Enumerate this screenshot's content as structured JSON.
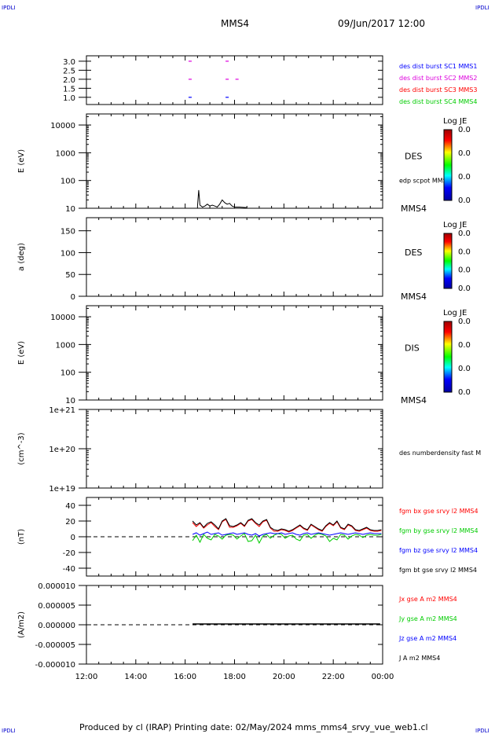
{
  "header": {
    "corner_label": "IPDLI",
    "spacecraft": "MMS4",
    "datetime": "09/Jun/2017 12:00"
  },
  "footer": {
    "text": "Produced by cl (IRAP)   Printing date: 02/May/2024   mms_mms4_srvy_vue_web1.cl"
  },
  "colors": {
    "mms1": "#0000ff",
    "mms2": "#dd00dd",
    "mms3": "#ff0000",
    "mms4": "#00cc00",
    "bt": "#000000"
  },
  "colorbar": {
    "title": "Log JE",
    "ticks": [
      "0.0",
      "0.0",
      "0.0",
      "0.0"
    ]
  },
  "chart_data": [
    {
      "id": "burst",
      "type": "scatter",
      "ylabel": "",
      "ylim": [
        0.6,
        3.3
      ],
      "yticks": [
        "3.0",
        "2.5",
        "2.0",
        "1.5",
        "1.0"
      ],
      "legend": [
        "des dist burst SC1 MMS1",
        "des dist burst SC2 MMS2",
        "des dist burst SC3 MMS3",
        "des dist burst SC4 MMS4"
      ],
      "segments": [
        {
          "t": 16.2,
          "y": 3.0,
          "c": "mms2"
        },
        {
          "t": 17.7,
          "y": 3.0,
          "c": "mms2"
        },
        {
          "t": 16.2,
          "y": 2.0,
          "c": "mms2"
        },
        {
          "t": 17.7,
          "y": 2.0,
          "c": "mms2"
        },
        {
          "t": 18.1,
          "y": 2.0,
          "c": "mms2"
        },
        {
          "t": 16.2,
          "y": 1.0,
          "c": "mms1"
        },
        {
          "t": 17.7,
          "y": 1.0,
          "c": "mms1"
        }
      ]
    },
    {
      "id": "des-energy",
      "type": "heatmap",
      "ylabel": "E (eV)",
      "scale": "log",
      "ylim": [
        10,
        25000
      ],
      "yticks": [
        "10000",
        "1000",
        "100",
        "10"
      ],
      "label": "DES",
      "sublabel": "edp scpot MMS4",
      "bottom_label": "MMS4",
      "scpot": [
        [
          16.5,
          12
        ],
        [
          16.55,
          45
        ],
        [
          16.6,
          13
        ],
        [
          16.7,
          11
        ],
        [
          16.8,
          12
        ],
        [
          16.9,
          14
        ],
        [
          17.0,
          12
        ],
        [
          17.1,
          13
        ],
        [
          17.2,
          12
        ],
        [
          17.3,
          11
        ],
        [
          17.4,
          14
        ],
        [
          17.5,
          20
        ],
        [
          17.6,
          16
        ],
        [
          17.7,
          14
        ],
        [
          17.8,
          15
        ],
        [
          17.9,
          12
        ],
        [
          18.0,
          11
        ],
        [
          18.2,
          11
        ],
        [
          18.5,
          10.5
        ]
      ]
    },
    {
      "id": "des-pitch",
      "type": "heatmap",
      "ylabel": "a (deg)",
      "ylim": [
        0,
        180
      ],
      "yticks": [
        "150",
        "100",
        "50",
        "0"
      ],
      "label": "DES",
      "bottom_label": "MMS4"
    },
    {
      "id": "dis-energy",
      "type": "heatmap",
      "ylabel": "E (eV)",
      "scale": "log",
      "ylim": [
        10,
        25000
      ],
      "yticks": [
        "10000",
        "1000",
        "100",
        "10"
      ],
      "label": "DIS",
      "bottom_label": "MMS4"
    },
    {
      "id": "density",
      "type": "line",
      "ylabel": "(cm^-3)",
      "scale": "log",
      "ylim": [
        1e+19,
        1e+21
      ],
      "yticks": [
        "1e+21",
        "1e+20",
        "1e+19"
      ],
      "legend": [
        "des numberdensity fast M"
      ]
    },
    {
      "id": "fgm",
      "type": "line",
      "ylabel": "(nT)",
      "ylim": [
        -50,
        50
      ],
      "yticks": [
        "40",
        "20",
        "0",
        "-20",
        "-40"
      ],
      "legend": [
        "fgm bx gse srvy l2 MMS4",
        "fgm by gse srvy l2 MMS4",
        "fgm bz gse srvy l2 MMS4",
        "fgm bt gse srvy l2 MMS4"
      ],
      "x": [
        16.3,
        16.45,
        16.6,
        16.75,
        16.9,
        17.05,
        17.2,
        17.35,
        17.5,
        17.65,
        17.8,
        17.95,
        18.1,
        18.25,
        18.4,
        18.55,
        18.7,
        18.85,
        19.0,
        19.15,
        19.3,
        19.45,
        19.6,
        19.75,
        19.9,
        20.05,
        20.2,
        20.35,
        20.5,
        20.65,
        20.8,
        20.95,
        21.1,
        21.25,
        21.4,
        21.55,
        21.7,
        21.85,
        22.0,
        22.15,
        22.3,
        22.45,
        22.6,
        22.75,
        22.9,
        23.05,
        23.2,
        23.35,
        23.5,
        23.65,
        23.8,
        23.95
      ],
      "bt": [
        20,
        15,
        18,
        12,
        17,
        19,
        15,
        10,
        20,
        23,
        14,
        13,
        15,
        18,
        14,
        21,
        23,
        18,
        15,
        20,
        22,
        12,
        9,
        8,
        10,
        9,
        7,
        9,
        12,
        15,
        11,
        9,
        16,
        13,
        10,
        8,
        14,
        18,
        15,
        20,
        12,
        10,
        16,
        14,
        9,
        8,
        10,
        12,
        9,
        8,
        8,
        9
      ],
      "bx": [
        18,
        13,
        17,
        11,
        15,
        18,
        13,
        9,
        19,
        22,
        12,
        12,
        14,
        17,
        13,
        20,
        22,
        17,
        13,
        19,
        21,
        11,
        7,
        7,
        9,
        8,
        6,
        8,
        11,
        14,
        10,
        8,
        15,
        12,
        9,
        7,
        13,
        17,
        14,
        19,
        11,
        9,
        15,
        13,
        8,
        7,
        9,
        11,
        8,
        7,
        7,
        8
      ],
      "by": [
        -5,
        2,
        -7,
        3,
        -2,
        -4,
        3,
        1,
        -3,
        2,
        3,
        2,
        -3,
        1,
        4,
        -6,
        -5,
        2,
        -8,
        1,
        3,
        -2,
        2,
        4,
        3,
        -2,
        1,
        2,
        -3,
        -5,
        2,
        3,
        -2,
        2,
        4,
        3,
        1,
        -6,
        -2,
        -4,
        3,
        2,
        -3,
        1,
        3,
        2,
        -1,
        2,
        3,
        2,
        2,
        3
      ],
      "bz": [
        3,
        5,
        2,
        4,
        6,
        3,
        4,
        5,
        2,
        3,
        4,
        5,
        3,
        4,
        5,
        3,
        2,
        4,
        1,
        3,
        4,
        5,
        4,
        4,
        5,
        3,
        4,
        5,
        3,
        2,
        4,
        5,
        3,
        4,
        5,
        4,
        3,
        2,
        3,
        4,
        5,
        4,
        3,
        4,
        5,
        4,
        3,
        4,
        5,
        4,
        4,
        4
      ]
    },
    {
      "id": "current",
      "type": "line",
      "ylabel": "(A/m2)",
      "ylim": [
        -1e-05,
        1e-05
      ],
      "yticks": [
        "0.000010",
        "0.000005",
        "0.000000",
        "-0.000005",
        "-0.000010"
      ],
      "legend": [
        "Jx gse A m2 MMS4",
        "Jy gse A m2 MMS4",
        "Jz gse A m2 MMS4",
        "J A m2 MMS4"
      ]
    }
  ],
  "xaxis": {
    "range": [
      12,
      24
    ],
    "ticklabels": [
      "12:00",
      "14:00",
      "16:00",
      "18:00",
      "20:00",
      "22:00",
      "00:00"
    ]
  }
}
